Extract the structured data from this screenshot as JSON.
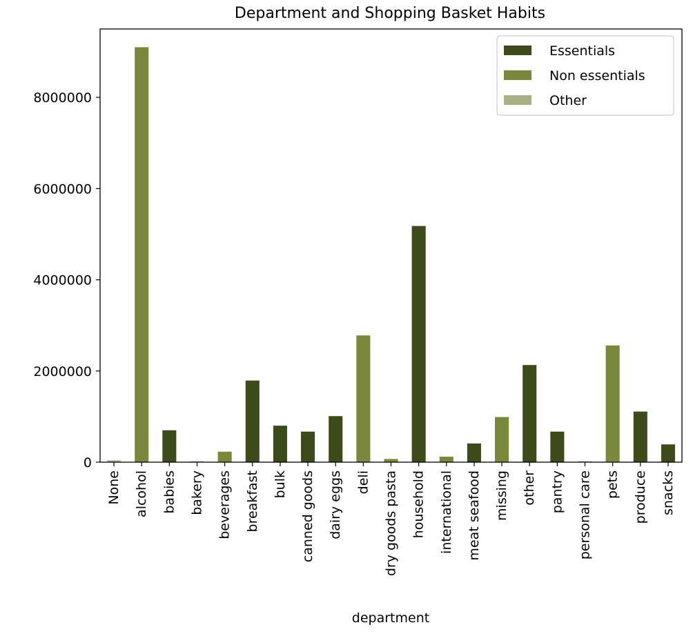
{
  "chart_data": {
    "type": "bar",
    "title": "Department and Shopping Basket Habits",
    "xlabel": "department",
    "ylabel": "",
    "ylim": [
      0,
      9500000
    ],
    "yticks": [
      0,
      2000000,
      4000000,
      6000000,
      8000000
    ],
    "ytick_labels": [
      "0",
      "2000000",
      "4000000",
      "6000000",
      "8000000"
    ],
    "grid": false,
    "legend_position": "top-right",
    "legend": [
      {
        "name": "Essentials",
        "color": "#3d4a19"
      },
      {
        "name": "Non essentials",
        "color": "#7a883b"
      },
      {
        "name": "Other",
        "color": "#a9b184"
      }
    ],
    "categories": [
      "None",
      "alcohol",
      "babies",
      "bakery",
      "beverages",
      "breakfast",
      "bulk",
      "canned goods",
      "dairy eggs",
      "deli",
      "dry goods pasta",
      "household",
      "international",
      "meat seafood",
      "missing",
      "other",
      "pantry",
      "personal care",
      "pets",
      "produce",
      "snacks"
    ],
    "values": [
      40000,
      9100000,
      700000,
      20000,
      230000,
      1790000,
      800000,
      670000,
      1010000,
      2780000,
      70000,
      5180000,
      120000,
      410000,
      990000,
      2130000,
      670000,
      20000,
      2560000,
      1110000,
      390000
    ],
    "groups": [
      "Other",
      "Non essentials",
      "Essentials",
      "Other",
      "Non essentials",
      "Essentials",
      "Essentials",
      "Essentials",
      "Essentials",
      "Non essentials",
      "Non essentials",
      "Essentials",
      "Non essentials",
      "Essentials",
      "Non essentials",
      "Essentials",
      "Essentials",
      "Other",
      "Non essentials",
      "Essentials",
      "Essentials"
    ]
  }
}
